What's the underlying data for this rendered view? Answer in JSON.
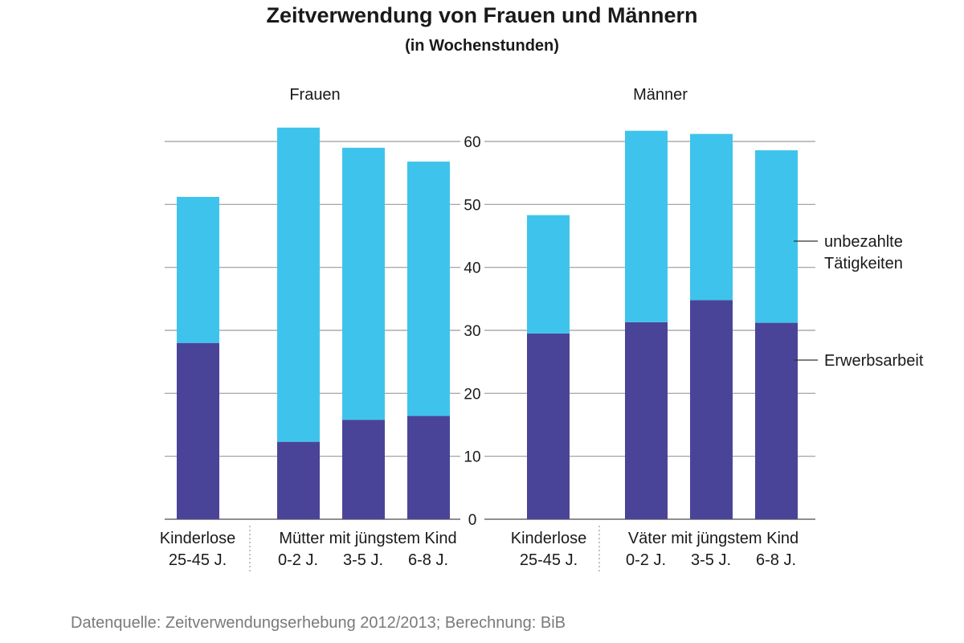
{
  "title": "Zeitverwendung von Frauen und Männern",
  "subtitle": "(in Wochenstunden)",
  "source": "Datenquelle: Zeitverwendungserhebung 2012/2013; Berechnung: BiB",
  "chart_data": [
    {
      "type": "bar",
      "stacked": true,
      "panel_title": "Frauen",
      "categories": [
        "Kinderlose 25-45 J.",
        "0-2 J.",
        "3-5 J.",
        "6-8 J."
      ],
      "category_lines": [
        [
          "Kinderlose",
          "25-45 J."
        ],
        [
          "0-2 J."
        ],
        [
          "3-5 J."
        ],
        [
          "6-8 J."
        ]
      ],
      "group_label": "Mütter mit jüngstem Kind",
      "series": [
        {
          "name": "Erwerbsarbeit",
          "values": [
            28,
            12.3,
            15.8,
            16.4
          ]
        },
        {
          "name": "unbezahlte Tätigkeiten",
          "values": [
            23.2,
            49.9,
            43.2,
            40.4
          ]
        }
      ],
      "ylim": [
        0,
        60
      ],
      "yticks": [
        0,
        10,
        20,
        30,
        40,
        50,
        60
      ],
      "grid": true
    },
    {
      "type": "bar",
      "stacked": true,
      "panel_title": "Männer",
      "categories": [
        "Kinderlose 25-45 J.",
        "0-2 J.",
        "3-5 J.",
        "6-8 J."
      ],
      "category_lines": [
        [
          "Kinderlose",
          "25-45 J."
        ],
        [
          "0-2 J."
        ],
        [
          "3-5 J."
        ],
        [
          "6-8 J."
        ]
      ],
      "group_label": "Väter mit jüngstem Kind",
      "series": [
        {
          "name": "Erwerbsarbeit",
          "values": [
            29.5,
            31.3,
            34.8,
            31.2
          ]
        },
        {
          "name": "unbezahlte Tätigkeiten",
          "values": [
            18.8,
            30.4,
            26.4,
            27.4
          ]
        }
      ],
      "ylim": [
        0,
        60
      ],
      "yticks": [
        0,
        10,
        20,
        30,
        40,
        50,
        60
      ],
      "grid": true
    }
  ],
  "legend": {
    "placement": "right",
    "items": [
      {
        "label_lines": [
          "unbezahlte",
          "Tätigkeiten"
        ],
        "series": "unbezahlte Tätigkeiten"
      },
      {
        "label_lines": [
          "Erwerbsarbeit"
        ],
        "series": "Erwerbsarbeit"
      }
    ]
  },
  "colors": {
    "erwerbsarbeit": "#4a4499",
    "unbezahlte": "#3ec4ec",
    "grid": "#9a9a9a",
    "text": "#1a1a1a",
    "source": "#7a7a7a"
  }
}
